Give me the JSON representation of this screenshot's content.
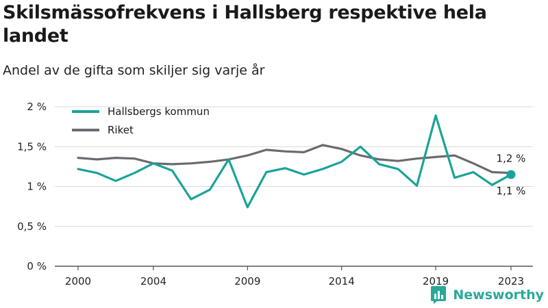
{
  "title": "Skilsmässofrekvens i Hallsberg respektive hela landet",
  "subtitle": "Andel av de gifta som skiljer sig varje år",
  "brand": "Newsworthy",
  "chart_data": {
    "type": "line",
    "x_ticks": [
      "2000",
      "2004",
      "2009",
      "2014",
      "2019",
      "2023"
    ],
    "y_ticks": [
      "0 %",
      "0,5 %",
      "1 %",
      "1,5 %",
      "2 %"
    ],
    "ylim": [
      0,
      2
    ],
    "xlim": [
      2000,
      2023
    ],
    "grid": true,
    "legend_position": "top-left",
    "series": [
      {
        "name": "Hallsbergs kommun",
        "color": "#1aa398",
        "end_label": "1,1 %",
        "x": [
          2000,
          2001,
          2002,
          2003,
          2004,
          2005,
          2006,
          2007,
          2008,
          2009,
          2010,
          2011,
          2012,
          2013,
          2014,
          2015,
          2016,
          2017,
          2018,
          2019,
          2020,
          2021,
          2022,
          2023
        ],
        "values": [
          1.22,
          1.17,
          1.07,
          1.17,
          1.29,
          1.2,
          0.84,
          0.96,
          1.34,
          0.74,
          1.18,
          1.23,
          1.15,
          1.22,
          1.31,
          1.5,
          1.28,
          1.22,
          1.01,
          1.89,
          1.11,
          1.18,
          1.02,
          1.15
        ]
      },
      {
        "name": "Riket",
        "color": "#6b6a6f",
        "end_label": "1,2 %",
        "x": [
          2000,
          2001,
          2002,
          2003,
          2004,
          2005,
          2006,
          2007,
          2008,
          2009,
          2010,
          2011,
          2012,
          2013,
          2014,
          2015,
          2016,
          2017,
          2018,
          2019,
          2020,
          2021,
          2022,
          2023
        ],
        "values": [
          1.36,
          1.34,
          1.36,
          1.35,
          1.29,
          1.28,
          1.29,
          1.31,
          1.34,
          1.39,
          1.46,
          1.44,
          1.43,
          1.52,
          1.47,
          1.39,
          1.34,
          1.32,
          1.35,
          1.37,
          1.39,
          1.29,
          1.18,
          1.17
        ]
      }
    ]
  }
}
